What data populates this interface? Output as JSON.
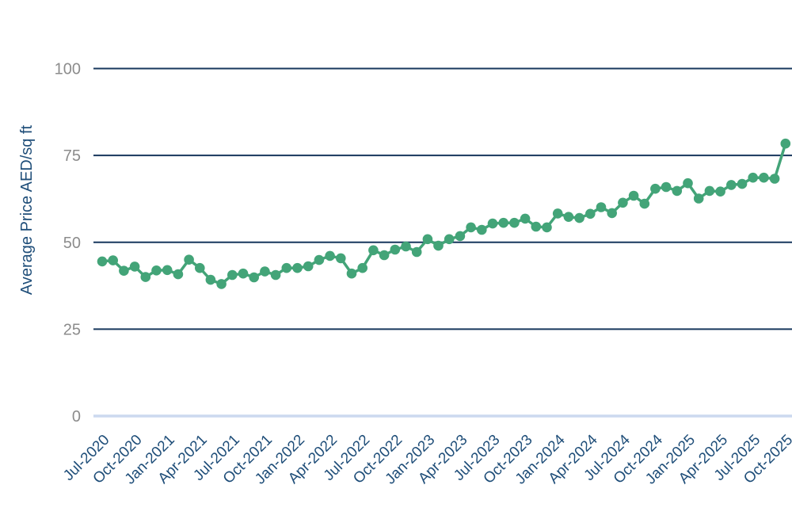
{
  "chart_data": {
    "type": "line",
    "title": "",
    "xlabel": "",
    "ylabel": "Average Price AED/sq ft",
    "ylim": [
      0,
      100
    ],
    "yticks": [
      0,
      25,
      50,
      75,
      100
    ],
    "x_tick_every": 3,
    "x_tick_rotation": 45,
    "grid": "horizontal",
    "legend": "none",
    "x": [
      "Jul-2020",
      "Aug-2020",
      "Sep-2020",
      "Oct-2020",
      "Nov-2020",
      "Dec-2020",
      "Jan-2021",
      "Feb-2021",
      "Mar-2021",
      "Apr-2021",
      "May-2021",
      "Jun-2021",
      "Jul-2021",
      "Aug-2021",
      "Sep-2021",
      "Oct-2021",
      "Nov-2021",
      "Dec-2021",
      "Jan-2022",
      "Feb-2022",
      "Mar-2022",
      "Apr-2022",
      "May-2022",
      "Jun-2022",
      "Jul-2022",
      "Aug-2022",
      "Sep-2022",
      "Oct-2022",
      "Nov-2022",
      "Dec-2022",
      "Jan-2023",
      "Feb-2023",
      "Mar-2023",
      "Apr-2023",
      "May-2023",
      "Jun-2023",
      "Jul-2023",
      "Aug-2023",
      "Sep-2023",
      "Oct-2023",
      "Nov-2023",
      "Dec-2023",
      "Jan-2024",
      "Feb-2024",
      "Mar-2024",
      "Apr-2024",
      "May-2024",
      "Jun-2024",
      "Jul-2024",
      "Aug-2024",
      "Sep-2024",
      "Oct-2024",
      "Nov-2024",
      "Dec-2024",
      "Jan-2025",
      "Feb-2025",
      "Mar-2025",
      "Apr-2025",
      "May-2025",
      "Jun-2025",
      "Jul-2025",
      "Aug-2025",
      "Sep-2025",
      "Oct-2025"
    ],
    "series": [
      {
        "name": "Average Price AED/sq ft",
        "values": [
          44.5,
          44.8,
          41.8,
          43.0,
          40.0,
          41.9,
          42.0,
          40.8,
          45.0,
          42.6,
          39.2,
          38.0,
          40.6,
          41.0,
          39.9,
          41.6,
          40.6,
          42.6,
          42.6,
          43.1,
          44.9,
          46.1,
          45.4,
          41.0,
          42.6,
          47.7,
          46.3,
          47.9,
          48.8,
          47.2,
          50.9,
          49.0,
          50.9,
          51.8,
          54.3,
          53.6,
          55.4,
          55.6,
          55.6,
          56.8,
          54.5,
          54.3,
          58.3,
          57.3,
          57.0,
          58.2,
          60.1,
          58.4,
          61.4,
          63.4,
          61.1,
          65.4,
          65.9,
          64.8,
          67.0,
          62.6,
          64.8,
          64.6,
          66.5,
          66.8,
          68.6,
          68.6,
          68.3,
          78.4
        ]
      }
    ],
    "colors": {
      "line": "#43a478",
      "marker": "#43a478",
      "gridline": "#17375d",
      "zero_line": "#ccd9ef",
      "y_tick_label": "#8c8c8c",
      "axis_label": "#1f4e79",
      "background": "#ffffff"
    }
  }
}
